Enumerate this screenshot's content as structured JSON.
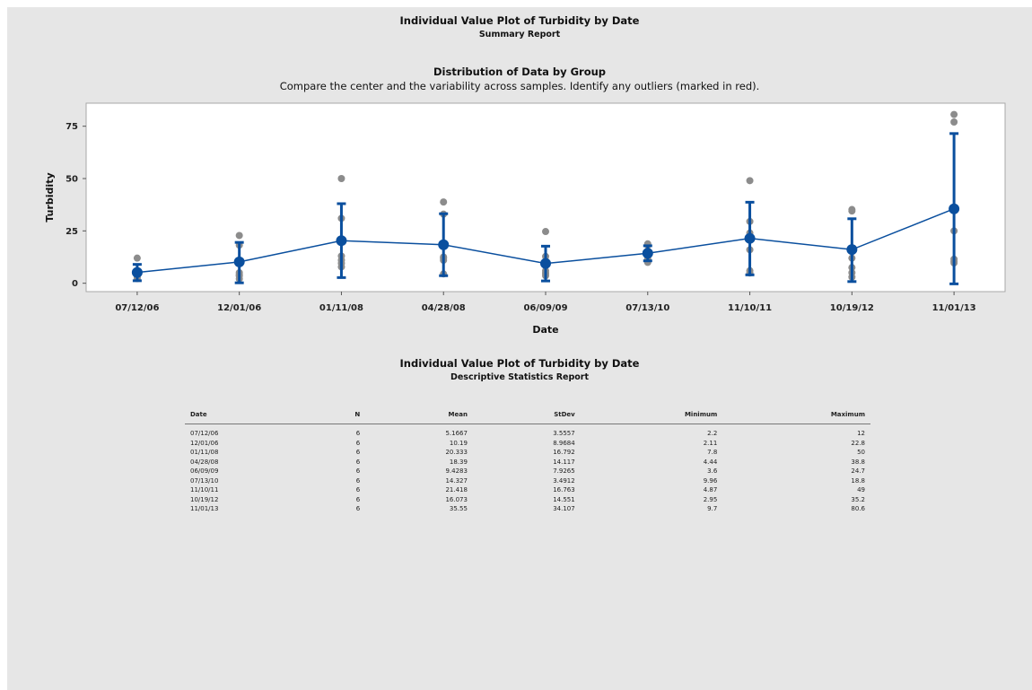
{
  "report": {
    "title": "Individual Value Plot of Turbidity by Date",
    "subtitle": "Summary Report",
    "section_title": "Distribution of Data by Group",
    "section_note": "Compare the center and the variability across samples. Identify any outliers (marked in red).",
    "table_title": "Individual Value Plot of Turbidity by Date",
    "table_subtitle": "Descriptive Statistics Report"
  },
  "chart_data": {
    "type": "scatter",
    "xlabel": "Date",
    "ylabel": "Turbidity",
    "ylim": [
      -4,
      86
    ],
    "yticks": [
      0,
      25,
      50,
      75
    ],
    "categories": [
      "07/12/06",
      "12/01/06",
      "01/11/08",
      "04/28/08",
      "06/09/09",
      "07/13/10",
      "11/10/11",
      "10/19/12",
      "11/01/13"
    ],
    "means": [
      5.1667,
      10.19,
      20.333,
      18.39,
      9.4283,
      14.327,
      21.418,
      16.073,
      35.55
    ],
    "interval_low": [
      1.2,
      0.2,
      2.7,
      3.6,
      1.1,
      10.7,
      4.0,
      0.8,
      -0.3
    ],
    "interval_high": [
      9.0,
      19.5,
      38.0,
      33.2,
      17.7,
      17.9,
      38.7,
      30.8,
      71.5
    ],
    "points": [
      [
        2.2,
        3.0,
        4.5,
        5.0,
        4.3,
        12.0
      ],
      [
        2.11,
        3.5,
        4.0,
        5.0,
        18.2,
        22.8
      ],
      [
        7.8,
        9.5,
        11.0,
        13.0,
        31.0,
        50.0
      ],
      [
        4.44,
        11.0,
        12.0,
        12.5,
        33.0,
        38.8
      ],
      [
        3.6,
        4.5,
        5.0,
        6.0,
        12.8,
        24.7
      ],
      [
        9.96,
        11.5,
        13.0,
        14.0,
        18.0,
        18.8
      ],
      [
        4.87,
        6.0,
        16.0,
        24.0,
        29.5,
        49.0
      ],
      [
        2.95,
        5.0,
        7.5,
        12.0,
        34.5,
        35.2
      ],
      [
        9.7,
        10.5,
        11.5,
        25.0,
        77.0,
        80.6
      ]
    ],
    "grid": false,
    "colors": {
      "mean": "#0a4f9e",
      "points": "#8c8c8c",
      "line": "#0a4f9e"
    }
  },
  "table": {
    "headers": [
      "Date",
      "N",
      "Mean",
      "StDev",
      "Minimum",
      "Maximum"
    ],
    "rows": [
      [
        "07/12/06",
        "6",
        "5.1667",
        "3.5557",
        "2.2",
        "12"
      ],
      [
        "12/01/06",
        "6",
        "10.19",
        "8.9684",
        "2.11",
        "22.8"
      ],
      [
        "01/11/08",
        "6",
        "20.333",
        "16.792",
        "7.8",
        "50"
      ],
      [
        "04/28/08",
        "6",
        "18.39",
        "14.117",
        "4.44",
        "38.8"
      ],
      [
        "06/09/09",
        "6",
        "9.4283",
        "7.9265",
        "3.6",
        "24.7"
      ],
      [
        "07/13/10",
        "6",
        "14.327",
        "3.4912",
        "9.96",
        "18.8"
      ],
      [
        "11/10/11",
        "6",
        "21.418",
        "16.763",
        "4.87",
        "49"
      ],
      [
        "10/19/12",
        "6",
        "16.073",
        "14.551",
        "2.95",
        "35.2"
      ],
      [
        "11/01/13",
        "6",
        "35.55",
        "34.107",
        "9.7",
        "80.6"
      ]
    ]
  }
}
